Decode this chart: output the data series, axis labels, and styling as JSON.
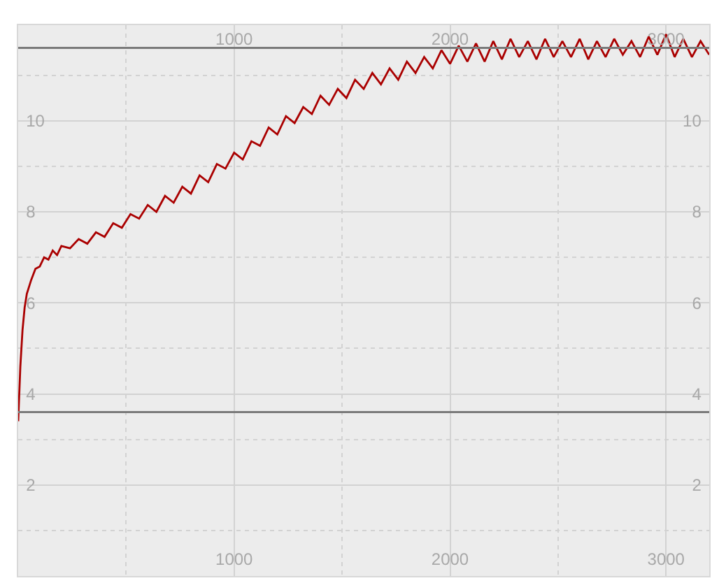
{
  "chart_data": {
    "type": "line",
    "x": [
      0,
      10,
      20,
      30,
      40,
      60,
      80,
      100,
      120,
      140,
      160,
      180,
      200,
      240,
      280,
      320,
      360,
      400,
      440,
      480,
      520,
      560,
      600,
      640,
      680,
      720,
      760,
      800,
      840,
      880,
      920,
      960,
      1000,
      1040,
      1080,
      1120,
      1160,
      1200,
      1240,
      1280,
      1320,
      1360,
      1400,
      1440,
      1480,
      1520,
      1560,
      1600,
      1640,
      1680,
      1720,
      1760,
      1800,
      1840,
      1880,
      1920,
      1960,
      2000,
      2040,
      2080,
      2120,
      2160,
      2200,
      2240,
      2280,
      2320,
      2360,
      2400,
      2440,
      2480,
      2520,
      2560,
      2600,
      2640,
      2680,
      2720,
      2760,
      2800,
      2840,
      2880,
      2920,
      2960,
      3000,
      3040,
      3080,
      3120,
      3160,
      3200
    ],
    "series": [
      {
        "color": "#aa0000",
        "values": [
          3.4,
          4.6,
          5.4,
          5.9,
          6.2,
          6.5,
          6.75,
          6.8,
          7.0,
          6.95,
          7.15,
          7.05,
          7.25,
          7.2,
          7.4,
          7.3,
          7.55,
          7.45,
          7.75,
          7.65,
          7.95,
          7.85,
          8.15,
          8.0,
          8.35,
          8.2,
          8.55,
          8.4,
          8.8,
          8.65,
          9.05,
          8.95,
          9.3,
          9.15,
          9.55,
          9.45,
          9.85,
          9.7,
          10.1,
          9.95,
          10.3,
          10.15,
          10.55,
          10.35,
          10.7,
          10.5,
          10.9,
          10.7,
          11.05,
          10.8,
          11.15,
          10.9,
          11.3,
          11.05,
          11.4,
          11.15,
          11.55,
          11.25,
          11.65,
          11.3,
          11.7,
          11.3,
          11.75,
          11.35,
          11.8,
          11.4,
          11.75,
          11.35,
          11.8,
          11.4,
          11.75,
          11.4,
          11.8,
          11.35,
          11.75,
          11.4,
          11.8,
          11.45,
          11.75,
          11.4,
          11.85,
          11.45,
          11.9,
          11.4,
          11.8,
          11.4,
          11.75,
          11.45
        ]
      }
    ],
    "xlim": [
      0,
      3200
    ],
    "xticks": [
      1000,
      2000,
      3000
    ],
    "x2lim": [
      0,
      3200
    ],
    "x2ticks": [
      1000,
      2000,
      3000
    ],
    "ylim": [
      0,
      12.1
    ],
    "yticks": [
      2,
      4,
      6,
      8,
      10
    ],
    "y2lim": [
      0,
      12.1
    ],
    "y2ticks": [
      2,
      4,
      6,
      8,
      10
    ],
    "ref_lines": [
      {
        "axis": "y",
        "value": 11.6,
        "color": "#7a7a7a"
      },
      {
        "axis": "y",
        "value": 3.6,
        "color": "#7a7a7a"
      }
    ],
    "grid": true,
    "marker": "none",
    "line_style": "solid"
  }
}
